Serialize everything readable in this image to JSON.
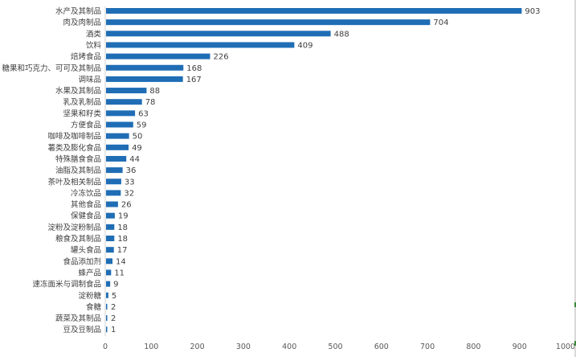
{
  "chart_data": {
    "type": "bar",
    "orientation": "horizontal",
    "categories": [
      "水产及其制品",
      "肉及肉制品",
      "酒类",
      "饮料",
      "焙烤食品",
      "糖果和巧克力、可可及其制品",
      "调味品",
      "水果及其制品",
      "乳及乳制品",
      "坚果和籽类",
      "方便食品",
      "咖啡及咖啡制品",
      "薯类及膨化食品",
      "特殊膳食食品",
      "油脂及其制品",
      "茶叶及相关制品",
      "冷冻饮品",
      "其他食品",
      "保健食品",
      "淀粉及淀粉制品",
      "粮食及其制品",
      "罐头食品",
      "食品添加剂",
      "蜂产品",
      "速冻面米与调制食品",
      "淀粉糖",
      "食糖",
      "蔬菜及其制品",
      "豆及豆制品"
    ],
    "values": [
      903,
      704,
      488,
      409,
      226,
      168,
      167,
      88,
      78,
      63,
      59,
      50,
      49,
      44,
      36,
      33,
      32,
      26,
      19,
      18,
      18,
      17,
      14,
      11,
      9,
      5,
      2,
      2,
      1
    ],
    "xlim": [
      0,
      1000
    ],
    "xticks": [
      "0",
      "100",
      "200",
      "300",
      "400",
      "500",
      "600",
      "700",
      "800",
      "900",
      "1000"
    ],
    "bar_color": "#1f6db5",
    "data_labels": true,
    "grid": false
  }
}
